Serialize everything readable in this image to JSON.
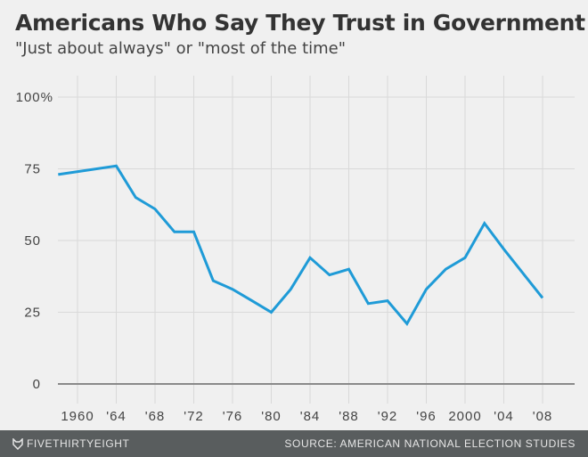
{
  "chart_data": {
    "type": "line",
    "title": "Americans Who Say They Trust in Government",
    "subtitle": "\"Just about always\" or \"most of the time\"",
    "x": [
      1958,
      1964,
      1966,
      1968,
      1970,
      1972,
      1974,
      1976,
      1978,
      1980,
      1982,
      1984,
      1986,
      1988,
      1990,
      1992,
      1994,
      1996,
      1998,
      2000,
      2002,
      2004,
      2008
    ],
    "values": [
      73,
      76,
      65,
      61,
      53,
      53,
      36,
      33,
      29,
      25,
      33,
      44,
      38,
      40,
      28,
      29,
      21,
      33,
      40,
      44,
      56,
      47,
      30
    ],
    "xlim": [
      1958,
      2008
    ],
    "ylim": [
      0,
      100
    ],
    "x_ticks": [
      1960,
      1964,
      1968,
      1972,
      1976,
      1980,
      1984,
      1988,
      1992,
      1996,
      2000,
      2004,
      2008
    ],
    "x_tick_labels": [
      "1960",
      "'64",
      "'68",
      "'72",
      "'76",
      "'80",
      "'84",
      "'88",
      "'92",
      "'96",
      "2000",
      "'04",
      "'08"
    ],
    "y_ticks": [
      0,
      25,
      50,
      75,
      100
    ],
    "y_tick_labels": [
      "0",
      "25",
      "50",
      "75",
      "100%"
    ],
    "grid": true,
    "line_color": "#1f9bd7"
  },
  "footer": {
    "brand": "FIVETHIRTYEIGHT",
    "brand_icon": "fox-icon",
    "source": "SOURCE: AMERICAN NATIONAL ELECTION STUDIES"
  }
}
